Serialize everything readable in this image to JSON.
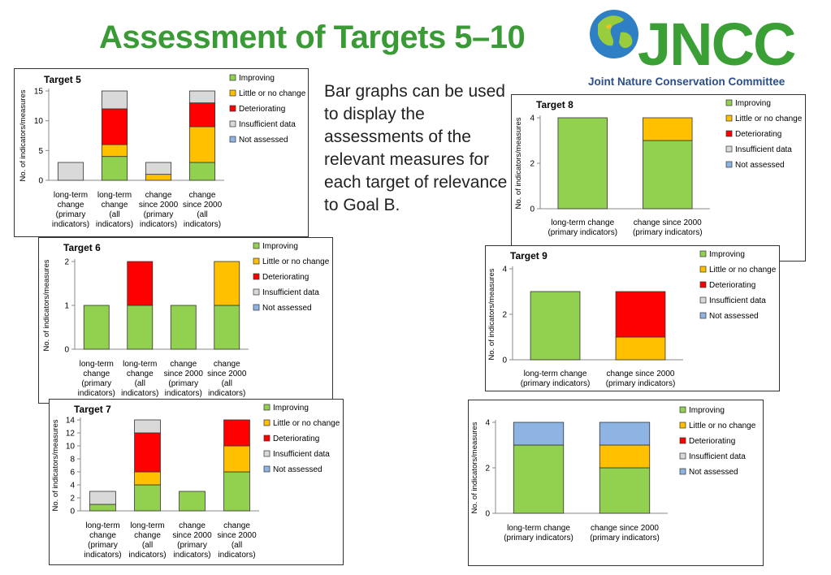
{
  "page": {
    "title": "Assessment of Targets 5–10",
    "caption": "Bar graphs can be used to display the assessments of the relevant measures for each target of relevance to Goal B.",
    "logo": {
      "name": "JNCC",
      "subtitle": "Joint Nature Conservation Committee",
      "color": "#3aa035",
      "subtitle_color": "#2a4e8a",
      "icon": "globe-icon"
    }
  },
  "colors": {
    "Improving": "#92d050",
    "Little or no change": "#ffc000",
    "Deteriorating": "#ff0000",
    "Insufficient data": "#d9d9d9",
    "Not assessed": "#8db4e2"
  },
  "chart_data": [
    {
      "id": "target5",
      "type": "bar",
      "stacked": true,
      "title": "Target 5",
      "ylabel": "No. of indicators/measures",
      "ylim": [
        0,
        15
      ],
      "yticks": [
        0,
        5,
        10,
        15
      ],
      "legend": "right",
      "categories": [
        [
          "long-term",
          "change",
          "(primary",
          "indicators)"
        ],
        [
          "long-term",
          "change",
          "(all",
          "indicators)"
        ],
        [
          "change",
          "since 2000",
          "(primary",
          "indicators)"
        ],
        [
          "change",
          "since 2000",
          "(all",
          "indicators)"
        ]
      ],
      "series": [
        {
          "name": "Improving",
          "values": [
            0,
            4,
            0,
            3
          ]
        },
        {
          "name": "Little or no change",
          "values": [
            0,
            2,
            1,
            6
          ]
        },
        {
          "name": "Deteriorating",
          "values": [
            0,
            6,
            0,
            4
          ]
        },
        {
          "name": "Insufficient data",
          "values": [
            3,
            3,
            2,
            2
          ]
        },
        {
          "name": "Not assessed",
          "values": [
            0,
            0,
            0,
            0
          ]
        }
      ]
    },
    {
      "id": "target6",
      "type": "bar",
      "stacked": true,
      "title": "Target 6",
      "ylabel": "No. of indicators/measures",
      "ylim": [
        0,
        2
      ],
      "yticks": [
        0,
        1,
        2
      ],
      "legend": "right",
      "categories": [
        [
          "long-term",
          "change",
          "(primary",
          "indicators)"
        ],
        [
          "long-term",
          "change",
          "(all",
          "indicators)"
        ],
        [
          "change",
          "since 2000",
          "(primary",
          "indicators)"
        ],
        [
          "change",
          "since 2000",
          "(all",
          "indicators)"
        ]
      ],
      "series": [
        {
          "name": "Improving",
          "values": [
            1,
            1,
            1,
            1
          ]
        },
        {
          "name": "Little or no change",
          "values": [
            0,
            0,
            0,
            1
          ]
        },
        {
          "name": "Deteriorating",
          "values": [
            0,
            1,
            0,
            0
          ]
        },
        {
          "name": "Insufficient data",
          "values": [
            0,
            0,
            0,
            0
          ]
        },
        {
          "name": "Not assessed",
          "values": [
            0,
            0,
            0,
            0
          ]
        }
      ]
    },
    {
      "id": "target7",
      "type": "bar",
      "stacked": true,
      "title": "Target 7",
      "ylabel": "No. of indicators/measures",
      "ylim": [
        0,
        14
      ],
      "yticks": [
        0,
        2,
        4,
        6,
        8,
        10,
        12,
        14
      ],
      "legend": "right",
      "categories": [
        [
          "long-term",
          "change",
          "(primary",
          "indicators)"
        ],
        [
          "long-term",
          "change",
          "(all",
          "indicators)"
        ],
        [
          "change",
          "since 2000",
          "(primary",
          "indicators)"
        ],
        [
          "change",
          "since 2000",
          "(all",
          "indicators)"
        ]
      ],
      "series": [
        {
          "name": "Improving",
          "values": [
            1,
            4,
            3,
            6
          ]
        },
        {
          "name": "Little or no change",
          "values": [
            0,
            2,
            0,
            4
          ]
        },
        {
          "name": "Deteriorating",
          "values": [
            0,
            6,
            0,
            4
          ]
        },
        {
          "name": "Insufficient data",
          "values": [
            2,
            2,
            0,
            0
          ]
        },
        {
          "name": "Not assessed",
          "values": [
            0,
            0,
            0,
            0
          ]
        }
      ]
    },
    {
      "id": "target8",
      "type": "bar",
      "stacked": true,
      "title": "Target 8",
      "ylabel": "No. of indicators/measures",
      "ylim": [
        0,
        4
      ],
      "yticks": [
        0,
        2,
        4
      ],
      "legend": "right",
      "categories": [
        [
          "long-term change",
          "(primary indicators)"
        ],
        [
          "change since 2000",
          "(primary indicators)"
        ]
      ],
      "series": [
        {
          "name": "Improving",
          "values": [
            4,
            3
          ]
        },
        {
          "name": "Little or no change",
          "values": [
            0,
            1
          ]
        },
        {
          "name": "Deteriorating",
          "values": [
            0,
            0
          ]
        },
        {
          "name": "Insufficient data",
          "values": [
            0,
            0
          ]
        },
        {
          "name": "Not assessed",
          "values": [
            0,
            0
          ]
        }
      ]
    },
    {
      "id": "target9",
      "type": "bar",
      "stacked": true,
      "title": "Target 9",
      "ylabel": "No. of indicators/measures",
      "ylim": [
        0,
        4
      ],
      "yticks": [
        0,
        2,
        4
      ],
      "legend": "right",
      "categories": [
        [
          "long-term change",
          "(primary indicators)"
        ],
        [
          "change since 2000",
          "(primary indicators)"
        ]
      ],
      "series": [
        {
          "name": "Improving",
          "values": [
            3,
            0
          ]
        },
        {
          "name": "Little or no change",
          "values": [
            0,
            1
          ]
        },
        {
          "name": "Deteriorating",
          "values": [
            0,
            2
          ]
        },
        {
          "name": "Insufficient data",
          "values": [
            0,
            0
          ]
        },
        {
          "name": "Not assessed",
          "values": [
            0,
            0
          ]
        }
      ]
    },
    {
      "id": "target10",
      "type": "bar",
      "stacked": true,
      "title": "",
      "ylabel": "No. of indicators/measures",
      "ylim": [
        0,
        4
      ],
      "yticks": [
        0,
        2,
        4
      ],
      "legend": "right",
      "categories": [
        [
          "long-term change",
          "(primary indicators)"
        ],
        [
          "change since 2000",
          "(primary indicators)"
        ]
      ],
      "series": [
        {
          "name": "Improving",
          "values": [
            3,
            2
          ]
        },
        {
          "name": "Little or no change",
          "values": [
            0,
            1
          ]
        },
        {
          "name": "Deteriorating",
          "values": [
            0,
            0
          ]
        },
        {
          "name": "Insufficient data",
          "values": [
            0,
            0
          ]
        },
        {
          "name": "Not assessed",
          "values": [
            1,
            1
          ]
        }
      ]
    }
  ]
}
